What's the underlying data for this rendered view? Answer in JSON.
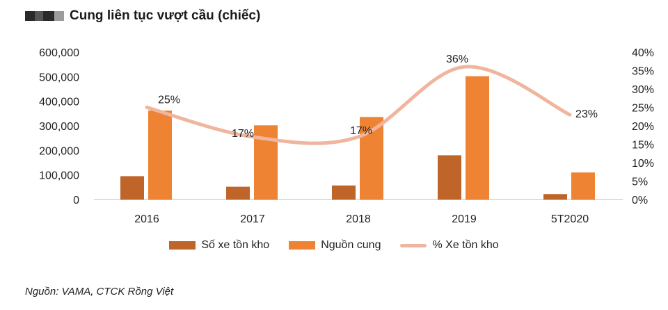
{
  "title": "Cung liên tục vượt cầu (chiếc)",
  "source": "Nguồn: VAMA, CTCK Rồng Việt",
  "colors": {
    "inventory": "#C0652A",
    "supply": "#EE8433",
    "pct_line": "#F0B59E",
    "logo_dark": "#2a2a2a",
    "logo_light": "#9c9c9c"
  },
  "chart_data": {
    "type": "bar",
    "categories": [
      "2016",
      "2017",
      "2018",
      "2019",
      "5T2020"
    ],
    "series": [
      {
        "name": "Số xe tồn kho",
        "type": "bar",
        "axis": "left",
        "values": [
          95000,
          52000,
          57000,
          180000,
          22000
        ]
      },
      {
        "name": "Nguồn cung",
        "type": "bar",
        "axis": "left",
        "values": [
          362000,
          302000,
          336000,
          502000,
          110000
        ]
      },
      {
        "name": "% Xe tồn kho",
        "type": "line",
        "axis": "right",
        "values": [
          25,
          17,
          17,
          36,
          23
        ],
        "labels": [
          "25%",
          "17%",
          "17%",
          "36%",
          "23%"
        ]
      }
    ],
    "y_left": {
      "min": 0,
      "max": 600000,
      "ticks": [
        "0",
        "100,000",
        "200,000",
        "300,000",
        "400,000",
        "500,000",
        "600,000"
      ]
    },
    "y_right": {
      "min": 0,
      "max": 40,
      "ticks": [
        "0%",
        "5%",
        "10%",
        "15%",
        "20%",
        "25%",
        "30%",
        "35%",
        "40%"
      ]
    },
    "legend_position": "bottom",
    "grid": false
  }
}
